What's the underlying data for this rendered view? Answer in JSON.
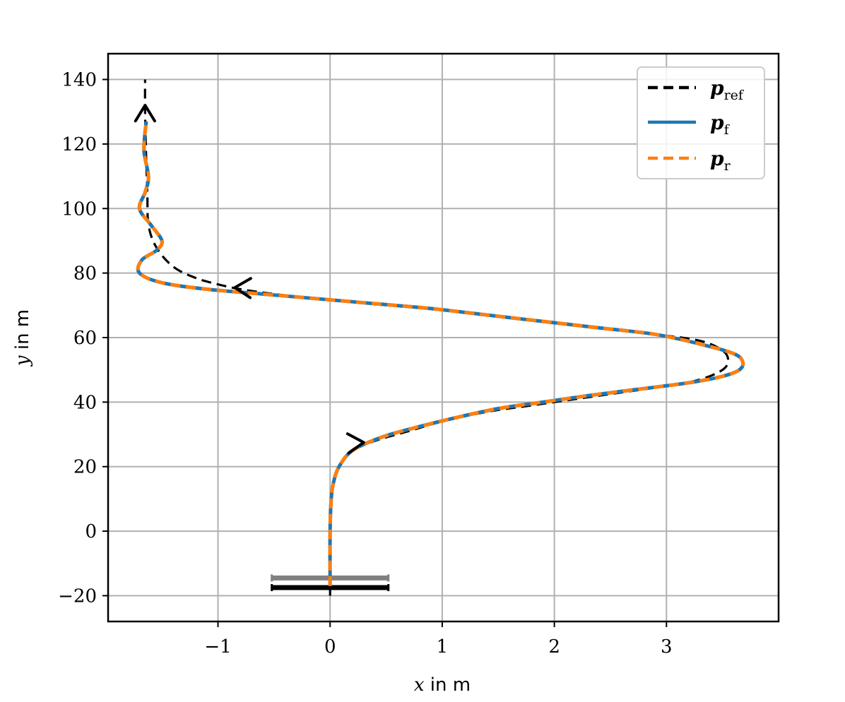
{
  "chart_data": {
    "type": "line",
    "xlabel": {
      "var": "x",
      "unit": " in m"
    },
    "ylabel": {
      "var": "y",
      "unit": " in m"
    },
    "xlim": [
      -1.98,
      4.0
    ],
    "ylim": [
      -28,
      148
    ],
    "xticks": [
      -1,
      0,
      1,
      2,
      3
    ],
    "xtick_labels": [
      "−1",
      "0",
      "1",
      "2",
      "3"
    ],
    "yticks": [
      -20,
      0,
      20,
      40,
      60,
      80,
      100,
      120,
      140
    ],
    "ytick_labels": [
      "−20",
      "0",
      "20",
      "40",
      "60",
      "80",
      "100",
      "120",
      "140"
    ],
    "grid": true,
    "legend_position": "top-right",
    "series": [
      {
        "name": "p",
        "subscript": "ref",
        "color": "#000000",
        "style": "dashed",
        "x": [
          0,
          0,
          0.01,
          0.03,
          0.08,
          0.2,
          0.4,
          0.7,
          1.0,
          1.4,
          1.8,
          2.2,
          2.6,
          3.0,
          3.3,
          3.5,
          3.55,
          3.5,
          3.3,
          2.9,
          2.4,
          1.9,
          1.4,
          0.9,
          0.4,
          -0.1,
          -0.5,
          -0.8,
          -1.0,
          -1.2,
          -1.4,
          -1.55,
          -1.62,
          -1.63,
          -1.64,
          -1.65,
          -1.65
        ],
        "y": [
          -20,
          0,
          10,
          15,
          20,
          25,
          28,
          31,
          34,
          37,
          39,
          41,
          43,
          45,
          47,
          50,
          53,
          56,
          59,
          61,
          63,
          65,
          67,
          69,
          70.5,
          72,
          73.5,
          75,
          76.5,
          78.5,
          82,
          88,
          95,
          105,
          115,
          130,
          140
        ]
      },
      {
        "name": "p",
        "subscript": "f",
        "color": "#1f77b4",
        "style": "solid",
        "x": [
          0,
          0,
          0.01,
          0.03,
          0.08,
          0.2,
          0.45,
          0.75,
          1.1,
          1.5,
          1.9,
          2.3,
          2.75,
          3.2,
          3.5,
          3.65,
          3.68,
          3.6,
          3.3,
          2.9,
          2.4,
          1.9,
          1.4,
          0.9,
          0.4,
          -0.1,
          -0.6,
          -1.1,
          -1.5,
          -1.7,
          -1.68,
          -1.55,
          -1.5,
          -1.6,
          -1.7,
          -1.65,
          -1.62,
          -1.66,
          -1.64
        ],
        "y": [
          -17,
          0,
          10,
          15,
          20,
          25,
          29,
          32,
          35,
          38,
          40,
          42,
          44,
          46,
          48,
          50,
          52.5,
          55,
          58,
          61,
          63,
          65,
          67,
          69,
          70.5,
          72,
          73.5,
          75,
          77,
          80,
          84,
          87,
          90,
          95,
          100,
          105,
          110,
          118,
          127
        ]
      },
      {
        "name": "p",
        "subscript": "r",
        "color": "#ff7f0e",
        "style": "dashed",
        "x": [
          0,
          0,
          0.01,
          0.03,
          0.08,
          0.2,
          0.45,
          0.75,
          1.1,
          1.5,
          1.9,
          2.3,
          2.75,
          3.2,
          3.5,
          3.65,
          3.68,
          3.6,
          3.3,
          2.9,
          2.4,
          1.9,
          1.4,
          0.9,
          0.4,
          -0.1,
          -0.6,
          -1.1,
          -1.5,
          -1.7,
          -1.68,
          -1.55,
          -1.5,
          -1.6,
          -1.7,
          -1.65,
          -1.62,
          -1.66,
          -1.64
        ],
        "y": [
          -17,
          0,
          10,
          15,
          20,
          25,
          29,
          32,
          35,
          38,
          40,
          42,
          44,
          46,
          48,
          50,
          52.5,
          55,
          58,
          61,
          63,
          65,
          67,
          69,
          70.5,
          72,
          73.5,
          75,
          77,
          80,
          84,
          87,
          90,
          95,
          100,
          105,
          110,
          118,
          127
        ]
      }
    ],
    "direction_arrows": [
      {
        "x": 0.3,
        "y": 27.5,
        "dx": 1.0,
        "dy": 6.0
      },
      {
        "x": -0.85,
        "y": 75.5,
        "dx": -1.0,
        "dy": 3.0
      },
      {
        "x": -1.65,
        "y": 132,
        "dx": 0,
        "dy": 10
      }
    ],
    "vehicle_bars": [
      {
        "x1": -0.52,
        "x2": 0.52,
        "y": -14.5,
        "color": "#808080"
      },
      {
        "x1": -0.52,
        "x2": 0.52,
        "y": -17.5,
        "color": "#000000"
      }
    ]
  }
}
